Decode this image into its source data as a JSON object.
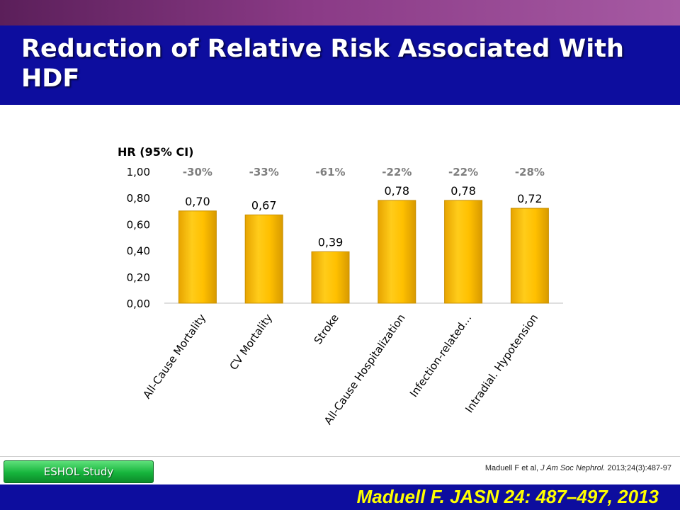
{
  "slide": {
    "title": "Reduction of Relative Risk Associated With HDF",
    "study_label": "ESHOL Study",
    "reference": {
      "authors": "Maduell F et al, ",
      "journal": "J Am Soc Nephrol.",
      "details": " 2013;24(3):487-97"
    },
    "citation": "Maduell F. JASN 24: 487–497, 2013"
  },
  "colors": {
    "title_bar": "#0d0d9e",
    "bar_fill": "#f5b800",
    "bar_edge": "#c98f00",
    "reduction_text": "#7f7f7f",
    "citation_text": "#ffff00"
  },
  "chart_data": {
    "type": "bar",
    "ylabel": "HR (95% CI)",
    "ylim": [
      0,
      1
    ],
    "yticks": [
      "0,00",
      "0,20",
      "0,40",
      "0,60",
      "0,80",
      "1,00"
    ],
    "categories": [
      "All-Cause Mortality",
      "CV Mortality",
      "Stroke",
      "All-Cause Hospitalization",
      "Infection-related…",
      "Intradial. Hypotension"
    ],
    "values": [
      0.7,
      0.67,
      0.39,
      0.78,
      0.78,
      0.72
    ],
    "value_labels": [
      "0,70",
      "0,67",
      "0,39",
      "0,78",
      "0,78",
      "0,72"
    ],
    "reductions": [
      "-30%",
      "-33%",
      "-61%",
      "-22%",
      "-22%",
      "-28%"
    ],
    "grid": false,
    "legend": "none"
  }
}
